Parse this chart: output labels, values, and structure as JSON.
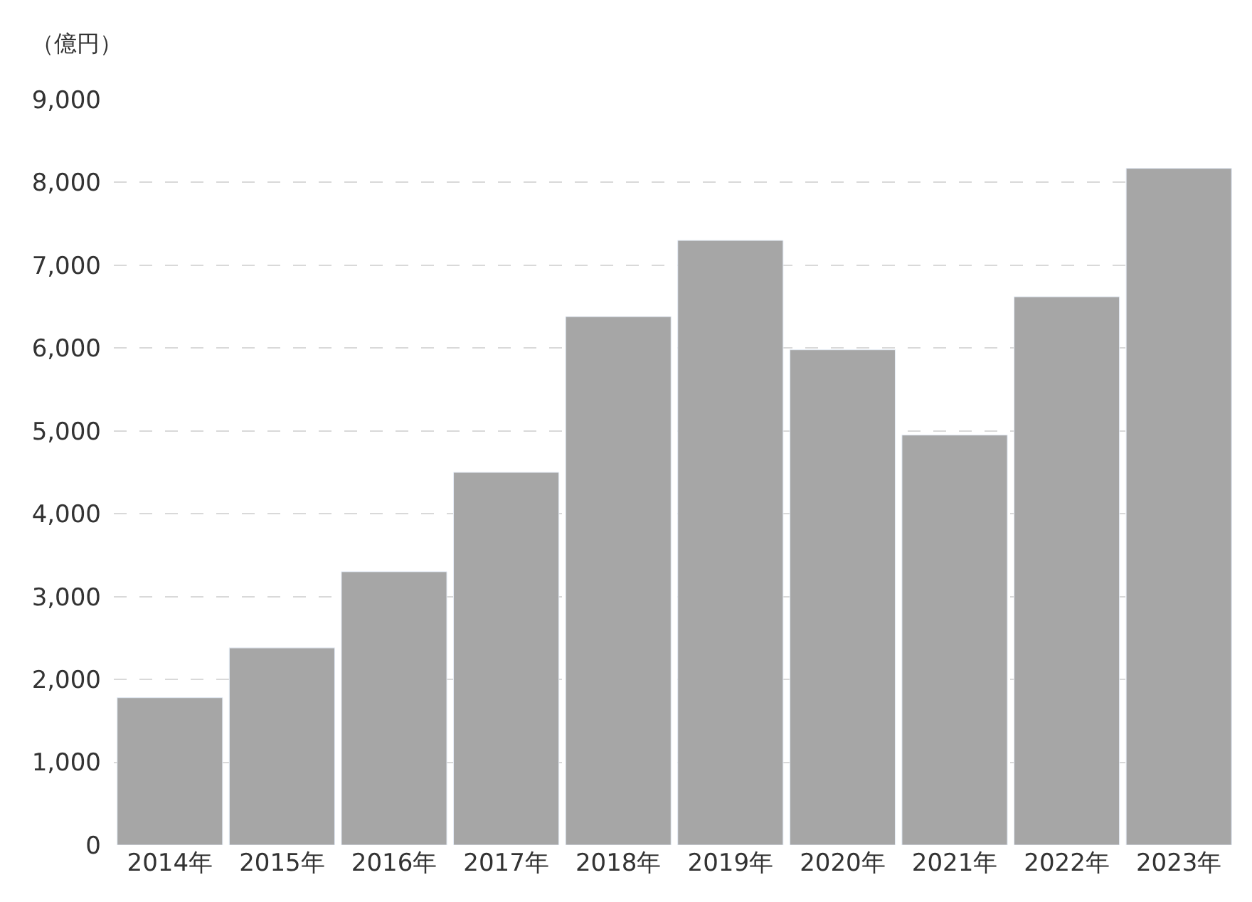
{
  "chart_data": {
    "type": "bar",
    "ylabel": "（億円）",
    "categories": [
      "2014年",
      "2015年",
      "2016年",
      "2017年",
      "2018年",
      "2019年",
      "2020年",
      "2021年",
      "2022年",
      "2023年"
    ],
    "values": [
      1780,
      2380,
      3300,
      4500,
      6380,
      7300,
      5980,
      4950,
      6620,
      8170
    ],
    "color": "#a6a6a6",
    "ylim": [
      0,
      9000
    ],
    "yticks": [
      {
        "value": 0,
        "label": "0"
      },
      {
        "value": 1000,
        "label": "1,000"
      },
      {
        "value": 2000,
        "label": "2,000"
      },
      {
        "value": 3000,
        "label": "3,000"
      },
      {
        "value": 4000,
        "label": "4,000"
      },
      {
        "value": 5000,
        "label": "5,000"
      },
      {
        "value": 6000,
        "label": "6,000"
      },
      {
        "value": 7000,
        "label": "7,000"
      },
      {
        "value": 8000,
        "label": "8,000"
      },
      {
        "value": 9000,
        "label": "9,000"
      }
    ],
    "grid": "y",
    "legend": false
  }
}
